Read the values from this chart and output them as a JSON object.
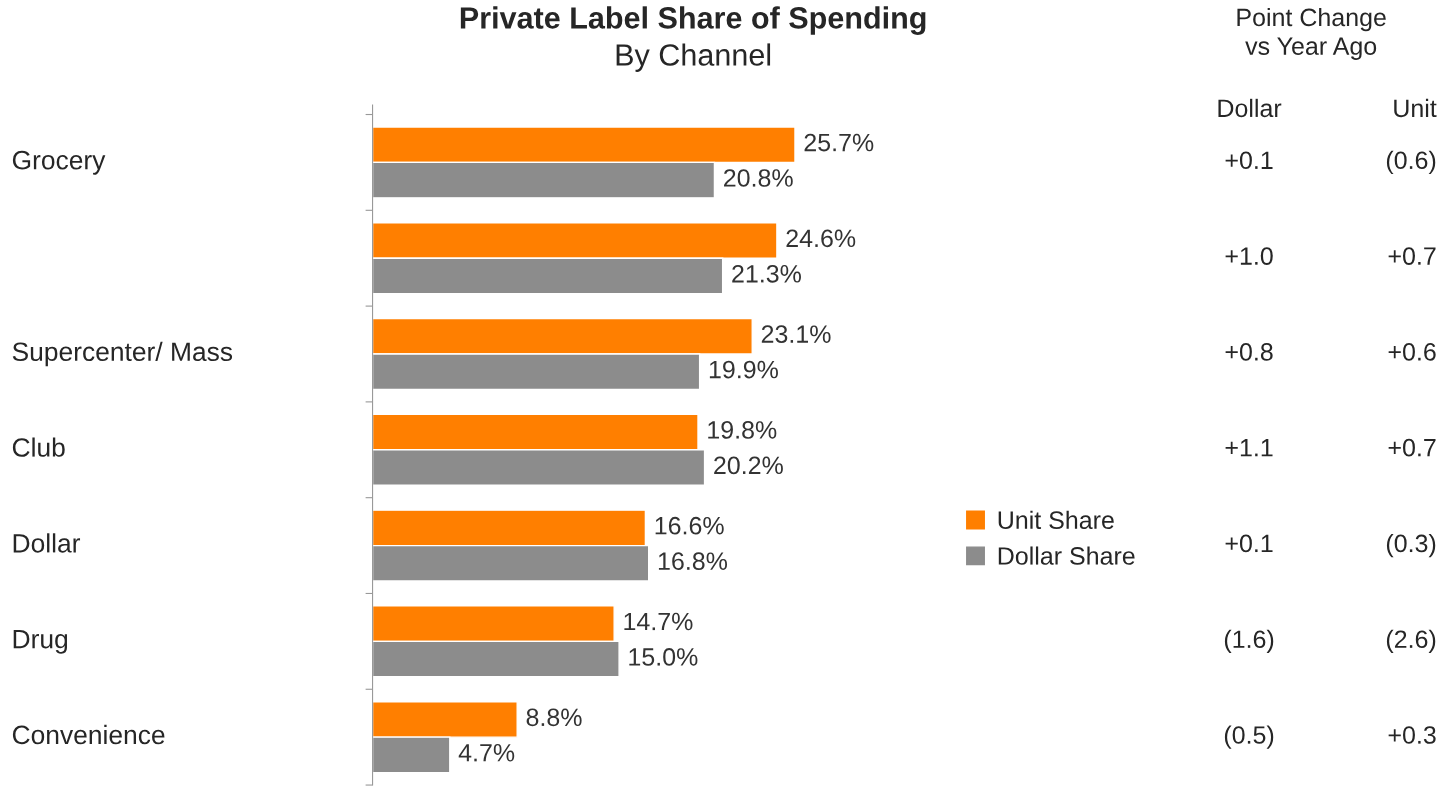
{
  "chart_data": {
    "type": "bar",
    "orientation": "horizontal",
    "title": "Private Label Share of Spending",
    "subtitle": "By Channel",
    "categories": [
      "Grocery",
      null,
      "Supercenter/ Mass",
      "Club",
      "Dollar",
      "Drug",
      "Convenience"
    ],
    "series": [
      {
        "name": "Unit Share",
        "color": "#ff7f00",
        "values": [
          25.7,
          24.6,
          23.1,
          19.8,
          16.6,
          14.7,
          8.8
        ],
        "value_labels": [
          "25.7%",
          "24.6%",
          "23.1%",
          "19.8%",
          "16.6%",
          "14.7%",
          "8.8%"
        ]
      },
      {
        "name": "Dollar Share",
        "color": "#8c8c8c",
        "values": [
          20.8,
          21.3,
          19.9,
          20.2,
          16.8,
          15.0,
          4.7
        ],
        "value_labels": [
          "20.8%",
          "21.3%",
          "19.9%",
          "20.2%",
          "16.8%",
          "15.0%",
          "4.7%"
        ]
      }
    ],
    "legend": "right",
    "grid": false,
    "annotations": [
      "Point Change\nvs Year Ago",
      "Dollar",
      "Unit",
      "+0.1",
      "(0.6)",
      "+1.0",
      "+0.7",
      "+0.8",
      "+0.6",
      "+1.1",
      "+0.7",
      "+0.1",
      "(0.3)",
      "(1.6)",
      "(2.6)",
      "(0.5)",
      "+0.3"
    ]
  }
}
